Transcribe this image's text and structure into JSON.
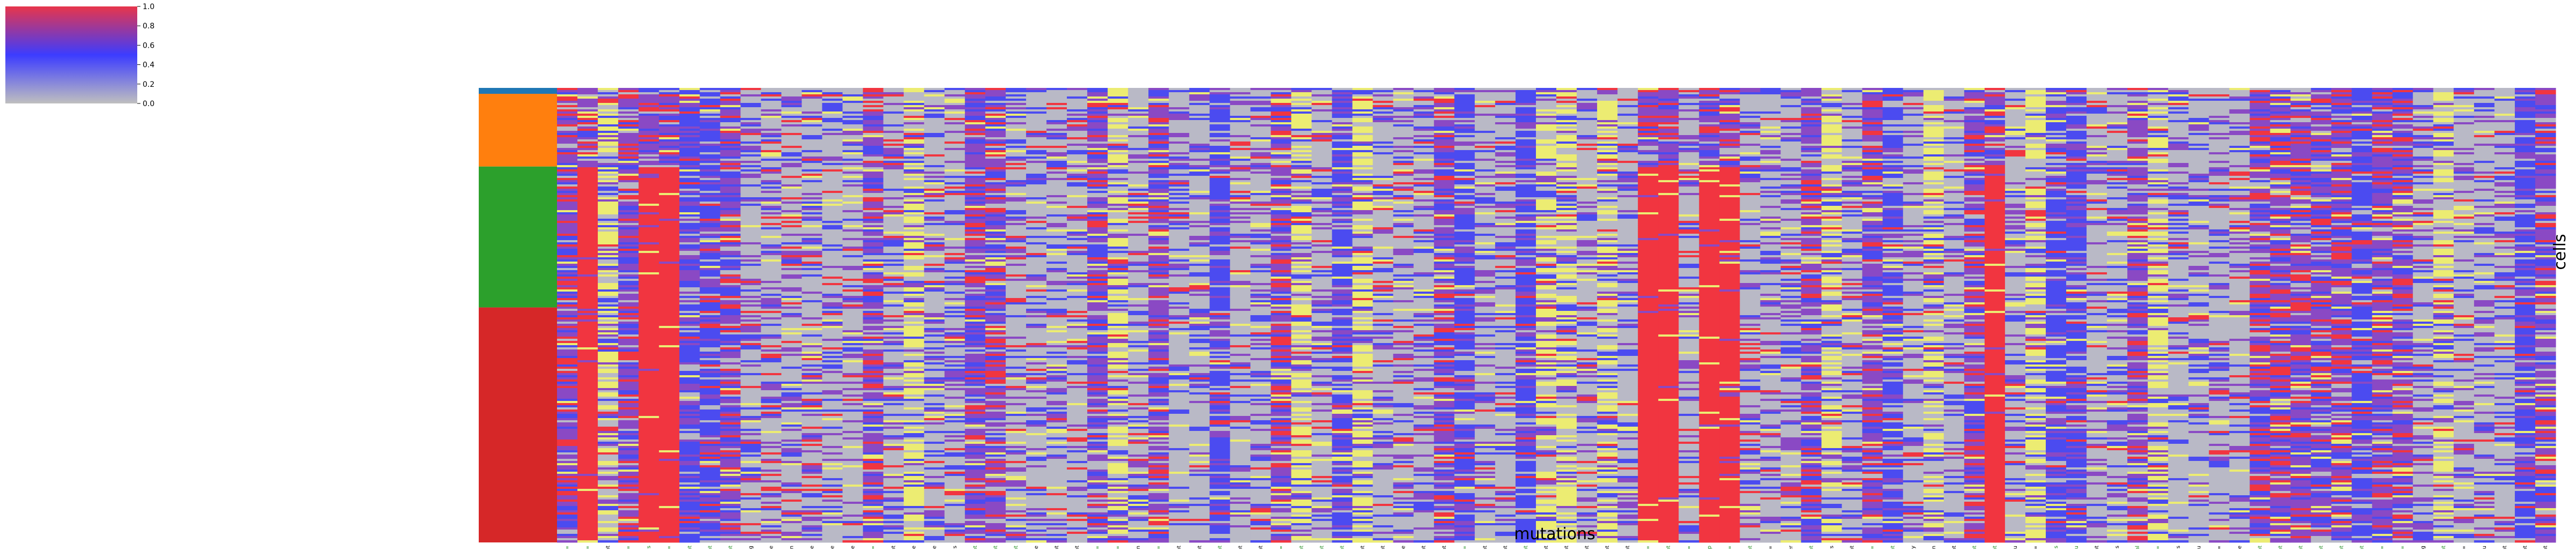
{
  "chart_data": {
    "type": "heatmap",
    "title": "",
    "xlabel": "mutations",
    "ylabel": "cells",
    "colorbar": {
      "ticks": [
        "0.0",
        "0.2",
        "0.4",
        "0.6",
        "0.8",
        "1.0"
      ],
      "range": [
        0.0,
        1.0
      ],
      "colors": [
        "#bfbfbf",
        "#3c3cff",
        "#e8354a"
      ]
    },
    "value_colors": {
      "gray": "#b9b9c6",
      "blue": "#4b4bf0",
      "purple": "#8a49c4",
      "red": "#f13540",
      "yellow": "#ecec72"
    },
    "row_groups": [
      {
        "color": "#1f77b4",
        "fraction": 0.013
      },
      {
        "color": "#ff7f0e",
        "fraction": 0.16
      },
      {
        "color": "#2ca02c",
        "fraction": 0.31
      },
      {
        "color": "#d62728",
        "fraction": 0.517
      }
    ],
    "label_colors": {
      "black": "#000000",
      "green": "#1a8a1a"
    },
    "columns": [
      {
        "label": "MTOR p.Ala1577=",
        "green": true,
        "profile": "purple"
      },
      {
        "label": "MTOR p.Asp999=",
        "green": true,
        "profile": "red_lower"
      },
      {
        "label": "MACF1 intron_variant",
        "green": false,
        "profile": "yellow"
      },
      {
        "label": "PIK3R3 p.Ser297=",
        "green": true,
        "profile": "purple"
      },
      {
        "label": "PIK3R3 p.Asp293Lys",
        "green": true,
        "profile": "red_lower"
      },
      {
        "label": "NFM1 p.Ser1165=",
        "green": true,
        "profile": "red_lower"
      },
      {
        "label": "NFM1 intron_variant",
        "green": true,
        "profile": "blue"
      },
      {
        "label": "NUF2 intron_variant",
        "green": true,
        "profile": "blue"
      },
      {
        "label": "FANCG intron_variant",
        "green": true,
        "profile": "purple"
      },
      {
        "label": "DNMT3A p.Pro40Arg",
        "green": false,
        "profile": "gray"
      },
      {
        "label": "MSH2 p.Val410Phe",
        "green": false,
        "profile": "gray"
      },
      {
        "label": "MSH2 p.Lys444Asn",
        "green": false,
        "profile": "gray"
      },
      {
        "label": "MSH2 p.Val112Phe",
        "green": false,
        "profile": "gray"
      },
      {
        "label": "ACVR2A p.Val116Phe",
        "green": false,
        "profile": "gray"
      },
      {
        "label": "ACVR2A p.Cys160Phe",
        "green": false,
        "profile": "gray"
      },
      {
        "label": "ACVR2A p.Pro11S=",
        "green": true,
        "profile": "purple"
      },
      {
        "label": "BMPR2 intron_variant",
        "green": false,
        "profile": "gray"
      },
      {
        "label": "BMPR2 p.Val460Phe",
        "green": false,
        "profile": "yellow"
      },
      {
        "label": "BMPR2 p.Val311Phe",
        "green": false,
        "profile": "gray"
      },
      {
        "label": "BAP1 p.Thr631Lys",
        "green": false,
        "profile": "gray"
      },
      {
        "label": "PBRM1 intron_variant",
        "green": true,
        "profile": "purple"
      },
      {
        "label": "PIK3CA intron_variant",
        "green": true,
        "profile": "purple"
      },
      {
        "label": "FBX4 intron_variant",
        "green": true,
        "profile": "gray"
      },
      {
        "label": "FGFR3 p.Leu40Ile",
        "green": false,
        "profile": "gray"
      },
      {
        "label": "PDGFRA intron_variant",
        "green": false,
        "profile": "gray"
      },
      {
        "label": "FAT1 5_prime_UTR_variant",
        "green": false,
        "profile": "gray"
      },
      {
        "label": "MREB1 p.His338=",
        "green": true,
        "profile": "purple"
      },
      {
        "label": "MREB1 p.Ala619=",
        "green": true,
        "profile": "yellow"
      },
      {
        "label": "IRRE1 p.Lys1246Asn",
        "green": false,
        "profile": "gray"
      },
      {
        "label": "HOCB p.Asp12=",
        "green": true,
        "profile": "purple"
      },
      {
        "label": "FANCE splice_site_variant",
        "green": false,
        "profile": "gray"
      },
      {
        "label": "ARID1B intron_variant",
        "green": false,
        "profile": "gray"
      },
      {
        "label": "CARD11 intron_variant",
        "green": true,
        "profile": "blue"
      },
      {
        "label": "NOTCH1 intron_variant",
        "green": false,
        "profile": "gray"
      },
      {
        "label": "BRAF intron_variant",
        "green": false,
        "profile": "gray"
      },
      {
        "label": "PALB2 p.Pro615=",
        "green": true,
        "profile": "purple"
      },
      {
        "label": "WRN intron_variant",
        "green": true,
        "profile": "yellow"
      },
      {
        "label": "WRN intron_variant",
        "green": true,
        "profile": "gray"
      },
      {
        "label": "CDKN2A 3_prime_UTR_variant",
        "green": true,
        "profile": "blue"
      },
      {
        "label": "CDKN2A intron_variant",
        "green": false,
        "profile": "yellow"
      },
      {
        "label": "CDKN2A intron_variant",
        "green": false,
        "profile": "gray"
      },
      {
        "label": "TGFBR1 p.Val228Phe",
        "green": false,
        "profile": "gray"
      },
      {
        "label": "TGFBR1 intron_variant",
        "green": false,
        "profile": "gray"
      },
      {
        "label": "BMPR1A intron_variant",
        "green": false,
        "profile": "purple"
      },
      {
        "label": "MEN1 p.Ser145=",
        "green": true,
        "profile": "blue"
      },
      {
        "label": "CUL5 5_prime_UTR_variant",
        "green": false,
        "profile": "gray"
      },
      {
        "label": "CUL5 3_prime_UTR_variant",
        "green": false,
        "profile": "gray"
      },
      {
        "label": "KRAS 3_prime_UTR_variant",
        "green": true,
        "profile": "blue"
      },
      {
        "label": "KMT2D intron_variant",
        "green": false,
        "profile": "yellow"
      },
      {
        "label": "KMT2D intron_variant",
        "green": false,
        "profile": "yellow"
      },
      {
        "label": "KMT2D intron_variant",
        "green": false,
        "profile": "gray"
      },
      {
        "label": "KMT2D intron_variant",
        "green": false,
        "profile": "yellow"
      },
      {
        "label": "POLE intron_variant",
        "green": false,
        "profile": "gray"
      },
      {
        "label": "PARP4 p.Ser534=",
        "green": true,
        "profile": "red_mid"
      },
      {
        "label": "PARP4 intron_variant",
        "green": true,
        "profile": "red_mid"
      },
      {
        "label": "FLT1 p.Tyr1213=",
        "green": true,
        "profile": "gray"
      },
      {
        "label": "BRCA2 p.Asn991Asp",
        "green": true,
        "profile": "red_mid"
      },
      {
        "label": "BRCA2 p.Ser2414=",
        "green": true,
        "profile": "red_mid"
      },
      {
        "label": "PARP2 intron_variant",
        "green": true,
        "profile": "gray"
      },
      {
        "label": "HERC2 p.Arg1150=",
        "green": false,
        "profile": "gray"
      },
      {
        "label": "HERC2 p.Tyr3128Ter",
        "green": false,
        "profile": "gray"
      },
      {
        "label": "NOD0 intron_variant",
        "green": true,
        "profile": "purple"
      },
      {
        "label": "SMAD3 p.Arg185Lys",
        "green": false,
        "profile": "yellow"
      },
      {
        "label": "IDH1 splice_site_variant",
        "green": false,
        "profile": "gray"
      },
      {
        "label": "AXIN1 p.Ala600=",
        "green": true,
        "profile": "purple"
      },
      {
        "label": "AXIN1 intron_variant",
        "green": true,
        "profile": "blue"
      },
      {
        "label": "CREBBP p.Asp2660Gly",
        "green": false,
        "profile": "gray"
      },
      {
        "label": "CREBBP p.Arg2520Gln",
        "green": false,
        "profile": "yellow"
      },
      {
        "label": "NUP93 intron_variant",
        "green": false,
        "profile": "gray"
      },
      {
        "label": "CDH1 intron_variant",
        "green": true,
        "profile": "purple"
      },
      {
        "label": "FANCA intron_variant",
        "green": true,
        "profile": "red_lower"
      },
      {
        "label": "TP53 p.Ser64Leu",
        "green": false,
        "profile": "gray"
      },
      {
        "label": "CHD3 p.Glu704=",
        "green": false,
        "profile": "yellow"
      },
      {
        "label": "BRCA1 p.Asn550His",
        "green": true,
        "profile": "blue"
      },
      {
        "label": "BRCA1 p.Pro646Leu",
        "green": true,
        "profile": "blue"
      },
      {
        "label": "RNF43 intron_variant",
        "green": false,
        "profile": "gray"
      },
      {
        "label": "RNF43 p.Pro470His",
        "green": false,
        "profile": "gray"
      },
      {
        "label": "RNF43 p.Ile47Val",
        "green": true,
        "profile": "purple"
      },
      {
        "label": "RECQL5 p.Asp808=",
        "green": true,
        "profile": "yellow"
      },
      {
        "label": "RECQL5 p.Asn438Lys",
        "green": false,
        "profile": "gray"
      },
      {
        "label": "RECQL5 p.Asp420Glu",
        "green": false,
        "profile": "gray"
      },
      {
        "label": "SMAD4 p.Glu49=",
        "green": false,
        "profile": "gray"
      },
      {
        "label": "SMAD4 p.Met294Ile",
        "green": false,
        "profile": "gray"
      },
      {
        "label": "STK11 intron_variant",
        "green": true,
        "profile": "purple"
      },
      {
        "label": "PTPRS intron_variant",
        "green": true,
        "profile": "purple"
      },
      {
        "label": "PTPRS intron_variant",
        "green": true,
        "profile": "purple"
      },
      {
        "label": "RASI intron_variant",
        "green": true,
        "profile": "purple"
      },
      {
        "label": "RASI intron_variant",
        "green": true,
        "profile": "purple"
      },
      {
        "label": "DNMT3B intron_variant",
        "green": true,
        "profile": "blue"
      },
      {
        "label": "NCOA3 p.Glu1251=",
        "green": true,
        "profile": "purple"
      },
      {
        "label": "NCOA3 p.Glu1251=",
        "green": true,
        "profile": "purple"
      },
      {
        "label": "NCOA3 p.Gln1274Arg",
        "green": false,
        "profile": "gray"
      },
      {
        "label": "RTEL1 intron_variant",
        "green": true,
        "profile": "yellow"
      },
      {
        "label": "RBM10 p.Lys842=",
        "green": false,
        "profile": "gray"
      },
      {
        "label": "ELK1 p.Val413Leu",
        "green": false,
        "profile": "gray"
      },
      {
        "label": "HUWE1 intron_variant",
        "green": false,
        "profile": "gray"
      },
      {
        "label": "HUWE1 intron_variant",
        "green": false,
        "profile": "blue"
      },
      {
        "label": "HUWE1 intron_variant",
        "green": false,
        "profile": "purple"
      }
    ]
  }
}
